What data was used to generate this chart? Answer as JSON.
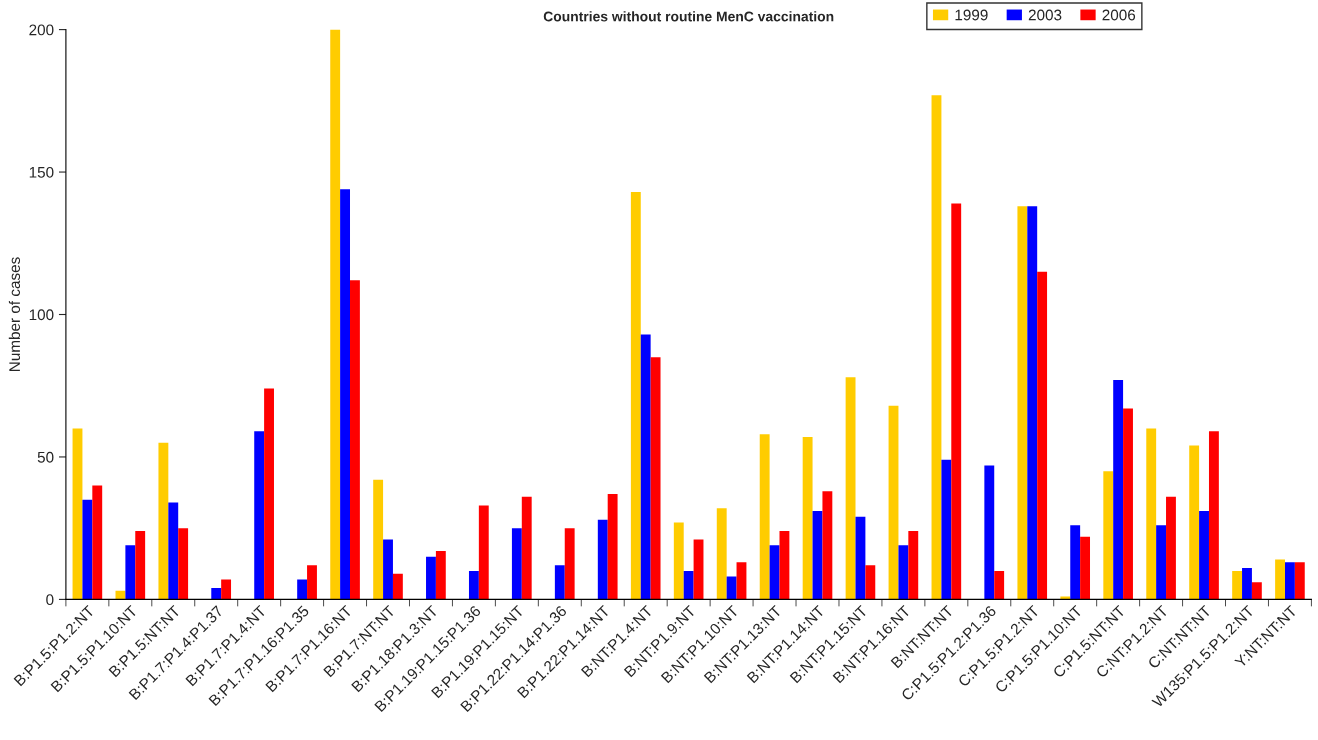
{
  "chart_data": {
    "type": "bar",
    "title": "Countries without routine MenC vaccination",
    "ylabel": "Number of cases",
    "categories": [
      "B:P1.5:P1.2:NT",
      "B:P1.5:P1.10:NT",
      "B:P1.5:NT:NT",
      "B:P1.7:P1.4:P1.37",
      "B:P1.7:P1.4:NT",
      "B:P1.7:P1.16:P1.35",
      "B:P1.7:P1.16:NT",
      "B:P1.7:NT:NT",
      "B:P1.18:P1.3:NT",
      "B:P1.19:P1.15:P1.36",
      "B:P1.19:P1.15:NT",
      "B:P1.22:P1.14:P1.36",
      "B:P1.22:P1.14:NT",
      "B:NT:P1.4:NT",
      "B:NT:P1.9:NT",
      "B:NT:P1.10:NT",
      "B:NT:P1.13:NT",
      "B:NT:P1.14:NT",
      "B:NT:P1.15:NT",
      "B:NT:P1.16:NT",
      "B:NT:NT:NT",
      "C:P1.5:P1.2:P1.36",
      "C:P1.5:P1.2:NT",
      "C:P1.5:P1.10:NT",
      "C:P1.5:NT:NT",
      "C:NT:P1.2:NT",
      "C:NT:NT:NT",
      "W135:P1.5:P1.2:NT",
      "Y:NT:NT:NT"
    ],
    "series": [
      {
        "name": "1999",
        "color": "#ffcc00",
        "values": [
          60,
          3,
          55,
          0,
          0,
          0,
          200,
          42,
          0,
          0,
          0,
          0,
          0,
          143,
          27,
          32,
          58,
          57,
          78,
          68,
          177,
          0,
          138,
          1,
          45,
          60,
          54,
          10,
          14
        ]
      },
      {
        "name": "2003",
        "color": "#0000ff",
        "values": [
          35,
          19,
          34,
          4,
          59,
          7,
          144,
          21,
          15,
          10,
          25,
          12,
          28,
          93,
          10,
          8,
          19,
          31,
          29,
          19,
          49,
          47,
          138,
          26,
          77,
          26,
          31,
          11,
          13
        ]
      },
      {
        "name": "2006",
        "color": "#ff0000",
        "values": [
          40,
          24,
          25,
          7,
          74,
          12,
          112,
          9,
          17,
          33,
          36,
          25,
          37,
          85,
          21,
          13,
          24,
          38,
          12,
          24,
          139,
          10,
          115,
          22,
          67,
          36,
          59,
          6,
          13
        ]
      }
    ],
    "ylim": [
      0,
      200
    ],
    "yticks": [
      0,
      50,
      100,
      150,
      200
    ],
    "grid": false,
    "legend": "top right"
  }
}
